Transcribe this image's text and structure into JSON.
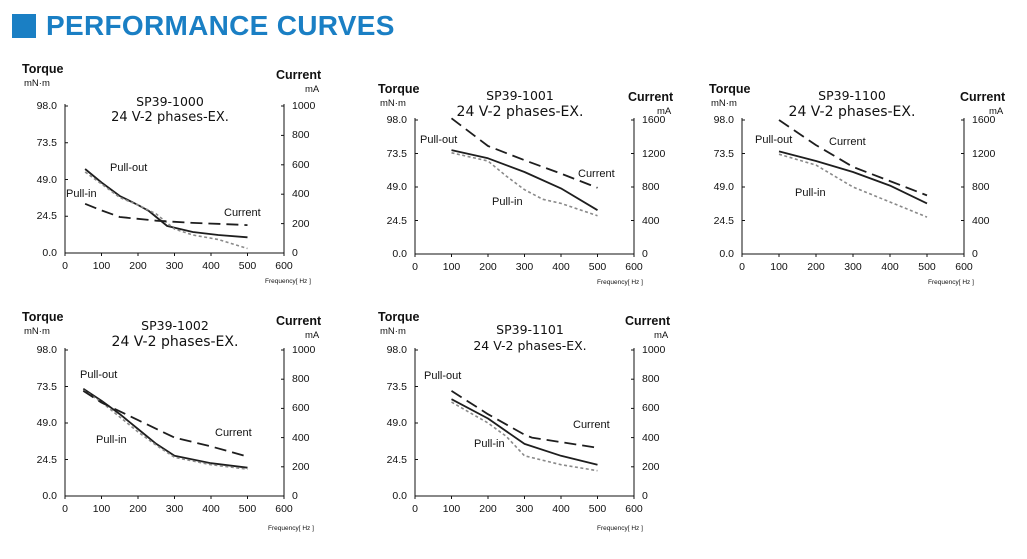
{
  "header": {
    "title": "PERFORMANCE CURVES",
    "accent": "#1a7fc4"
  },
  "colors": {
    "pull_out": "#1e1e1e",
    "pull_in": "#8a8a8a",
    "current": "#1e1e1e",
    "axis": "#111111"
  },
  "chart_data": [
    {
      "type": "line",
      "model": "SP39-1000",
      "subtitle": "24 V-2 phases-EX.",
      "ylabel": "Torque",
      "yunit": "mN·m",
      "y2label": "Current",
      "y2unit": "mA",
      "xunit": "Frequency[ Hz ]",
      "xlim": [
        0,
        600
      ],
      "ylim": [
        0,
        98.0
      ],
      "y2lim": [
        0,
        1000
      ],
      "xticks": [
        "0",
        "100",
        "200",
        "300",
        "400",
        "500",
        "600"
      ],
      "yticks": [
        "0.0",
        "24.5",
        "49.0",
        "73.5",
        "98.0"
      ],
      "y2ticks": [
        "0",
        "200",
        "400",
        "600",
        "800",
        "1000"
      ],
      "labels": {
        "pull_out": "Pull-out",
        "pull_in": "Pull-in",
        "current": "Current"
      },
      "series": [
        {
          "key": "pull_out",
          "name": "Pull-out",
          "axis": "y",
          "x": [
            55,
            100,
            150,
            200,
            230,
            280,
            350,
            420,
            500
          ],
          "y": [
            56,
            47,
            38,
            32,
            28,
            18,
            14,
            12,
            10.5
          ]
        },
        {
          "key": "pull_in",
          "name": "Pull-in",
          "axis": "y",
          "x": [
            55,
            100,
            150,
            200,
            250,
            300,
            350,
            420,
            500
          ],
          "y": [
            54,
            46,
            37,
            32,
            26,
            16,
            12,
            9,
            3
          ]
        },
        {
          "key": "current",
          "name": "Current",
          "axis": "y2",
          "x": [
            55,
            100,
            150,
            250,
            350,
            450,
            500
          ],
          "y": [
            335,
            290,
            245,
            220,
            205,
            195,
            190
          ]
        }
      ]
    },
    {
      "type": "line",
      "model": "SP39-1001",
      "subtitle": "24 V-2 phases-EX.",
      "ylabel": "Torque",
      "yunit": "mN·m",
      "y2label": "Current",
      "y2unit": "mA",
      "xunit": "Frequency[ Hz ]",
      "xlim": [
        0,
        600
      ],
      "ylim": [
        0,
        98.0
      ],
      "y2lim": [
        0,
        1600
      ],
      "xticks": [
        "0",
        "100",
        "200",
        "300",
        "400",
        "500",
        "600"
      ],
      "yticks": [
        "0.0",
        "24.5",
        "49.0",
        "73.5",
        "98.0"
      ],
      "y2ticks": [
        "0",
        "400",
        "800",
        "1200",
        "1600"
      ],
      "labels": {
        "pull_out": "Pull-out",
        "pull_in": "Pull-in",
        "current": "Current"
      },
      "series": [
        {
          "key": "pull_out",
          "name": "Pull-out",
          "axis": "y",
          "x": [
            100,
            200,
            300,
            400,
            500
          ],
          "y": [
            76,
            70,
            60,
            48,
            32
          ]
        },
        {
          "key": "pull_in",
          "name": "Pull-in",
          "axis": "y",
          "x": [
            100,
            200,
            250,
            300,
            350,
            400,
            500
          ],
          "y": [
            74,
            68,
            57,
            47,
            40,
            37,
            28
          ]
        },
        {
          "key": "current",
          "name": "Current",
          "axis": "y2",
          "x": [
            100,
            200,
            300,
            400,
            500
          ],
          "y": [
            1620,
            1290,
            1120,
            960,
            790
          ]
        }
      ]
    },
    {
      "type": "line",
      "model": "SP39-1100",
      "subtitle": "24 V-2 phases-EX.",
      "ylabel": "Torque",
      "yunit": "mN·m",
      "y2label": "Current",
      "y2unit": "mA",
      "xunit": "Frequency[ Hz ]",
      "xlim": [
        0,
        600
      ],
      "ylim": [
        0,
        98.0
      ],
      "y2lim": [
        0,
        1600
      ],
      "xticks": [
        "0",
        "100",
        "200",
        "300",
        "400",
        "500",
        "600"
      ],
      "yticks": [
        "0.0",
        "24.5",
        "49.0",
        "73.5",
        "98.0"
      ],
      "y2ticks": [
        "0",
        "400",
        "800",
        "1200",
        "1600"
      ],
      "labels": {
        "pull_out": "Pull-out",
        "pull_in": "Pull-in",
        "current": "Current"
      },
      "series": [
        {
          "key": "pull_out",
          "name": "Pull-out",
          "axis": "y",
          "x": [
            100,
            200,
            300,
            400,
            500
          ],
          "y": [
            75,
            68,
            60,
            50,
            37
          ]
        },
        {
          "key": "pull_in",
          "name": "Pull-in",
          "axis": "y",
          "x": [
            100,
            200,
            250,
            300,
            400,
            500
          ],
          "y": [
            73,
            65,
            57,
            49,
            38,
            27
          ]
        },
        {
          "key": "current",
          "name": "Current",
          "axis": "y2",
          "x": [
            100,
            200,
            300,
            400,
            500
          ],
          "y": [
            1600,
            1300,
            1040,
            870,
            700
          ]
        }
      ]
    },
    {
      "type": "line",
      "model": "SP39-1002",
      "subtitle": "24 V-2 phases-EX.",
      "ylabel": "Torque",
      "yunit": "mN·m",
      "y2label": "Current",
      "y2unit": "mA",
      "xunit": "Frequency[ Hz ]",
      "xlim": [
        0,
        600
      ],
      "ylim": [
        0,
        98.0
      ],
      "y2lim": [
        0,
        1000
      ],
      "xticks": [
        "0",
        "100",
        "200",
        "300",
        "400",
        "500",
        "600"
      ],
      "yticks": [
        "0.0",
        "24.5",
        "49.0",
        "73.5",
        "98.0"
      ],
      "y2ticks": [
        "0",
        "200",
        "400",
        "600",
        "800",
        "1000"
      ],
      "labels": {
        "pull_out": "Pull-out",
        "pull_in": "Pull-in",
        "current": "Current"
      },
      "series": [
        {
          "key": "pull_out",
          "name": "Pull-out",
          "axis": "y",
          "x": [
            50,
            100,
            150,
            200,
            250,
            300,
            400,
            500
          ],
          "y": [
            72,
            64,
            55,
            45,
            35,
            27,
            22,
            19
          ]
        },
        {
          "key": "pull_in",
          "name": "Pull-in",
          "axis": "y",
          "x": [
            50,
            100,
            150,
            200,
            250,
            300,
            400,
            500
          ],
          "y": [
            71,
            63,
            53,
            43,
            34,
            26,
            21,
            18
          ]
        },
        {
          "key": "current",
          "name": "Current",
          "axis": "y2",
          "x": [
            50,
            100,
            200,
            300,
            400,
            500
          ],
          "y": [
            720,
            640,
            520,
            400,
            340,
            270
          ]
        }
      ]
    },
    {
      "type": "line",
      "model": "SP39-1101",
      "subtitle": "24 V-2 phases-EX.",
      "ylabel": "Torque",
      "yunit": "mN·m",
      "y2label": "Current",
      "y2unit": "mA",
      "xunit": "Frequency[ Hz ]",
      "xlim": [
        0,
        600
      ],
      "ylim": [
        0,
        98.0
      ],
      "y2lim": [
        0,
        1000
      ],
      "xticks": [
        "0",
        "100",
        "200",
        "300",
        "400",
        "500",
        "600"
      ],
      "yticks": [
        "0.0",
        "24.5",
        "49.0",
        "73.5",
        "98.0"
      ],
      "y2ticks": [
        "0",
        "200",
        "400",
        "600",
        "800",
        "1000"
      ],
      "labels": {
        "pull_out": "Pull-out",
        "pull_in": "Pull-in",
        "current": "Current"
      },
      "series": [
        {
          "key": "pull_out",
          "name": "Pull-out",
          "axis": "y",
          "x": [
            100,
            200,
            300,
            400,
            500
          ],
          "y": [
            65,
            52,
            35,
            27,
            21
          ]
        },
        {
          "key": "pull_in",
          "name": "Pull-in",
          "axis": "y",
          "x": [
            100,
            200,
            250,
            300,
            400,
            500
          ],
          "y": [
            63,
            49,
            40,
            27,
            21,
            17
          ]
        },
        {
          "key": "current",
          "name": "Current",
          "axis": "y2",
          "x": [
            100,
            200,
            300,
            320,
            500
          ],
          "y": [
            720,
            560,
            420,
            400,
            330
          ]
        }
      ]
    }
  ]
}
